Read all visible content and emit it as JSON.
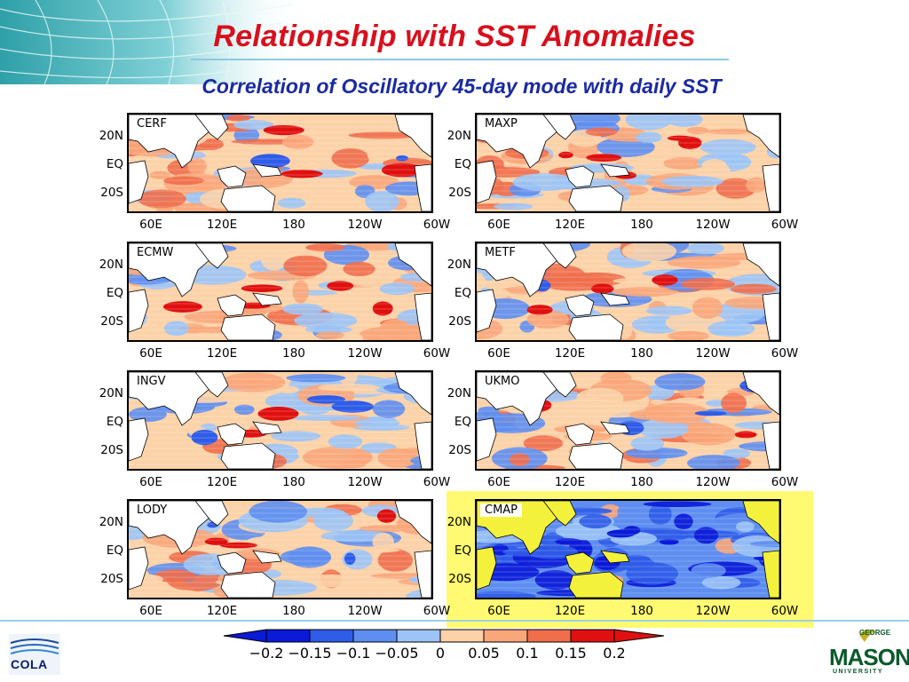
{
  "title": "Relationship with SST Anomalies",
  "subtitle": "Correlation of Oscillatory 45-day mode with daily SST",
  "axes": {
    "y_ticks": [
      "20N",
      "EQ",
      "20S"
    ],
    "x_ticks": [
      "60E",
      "120E",
      "180",
      "120W",
      "60W"
    ]
  },
  "panels": [
    {
      "label": "CERF",
      "highlighted": false
    },
    {
      "label": "MAXP",
      "highlighted": false
    },
    {
      "label": "ECMW",
      "highlighted": false
    },
    {
      "label": "METF",
      "highlighted": false
    },
    {
      "label": "INGV",
      "highlighted": false
    },
    {
      "label": "UKMO",
      "highlighted": false
    },
    {
      "label": "LODY",
      "highlighted": false
    },
    {
      "label": "CMAP",
      "highlighted": true
    }
  ],
  "colorbar": {
    "labels": [
      "−0.2",
      "−0.15",
      "−0.1",
      "−0.05",
      "0",
      "0.05",
      "0.1",
      "0.15",
      "0.2"
    ],
    "colors": [
      "#0a1ad8",
      "#2f5ce8",
      "#5e8ef0",
      "#9cc4f6",
      "#fcd2a8",
      "#f9a67a",
      "#f06e4c",
      "#e01010"
    ]
  },
  "colors": {
    "title": "#d8101c",
    "subtitle": "#1a2aa0",
    "highlight": "#fffa72",
    "land": "#ffffff",
    "land_highlight": "#f4f13c"
  },
  "logos": {
    "left": "COLA",
    "right_top": "GEORGE",
    "right_main": "MASON",
    "right_bottom": "UNIVERSITY"
  }
}
